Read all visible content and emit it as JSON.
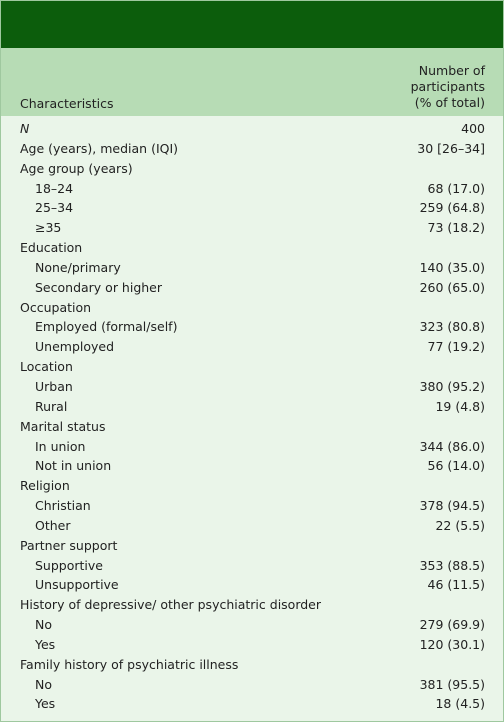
{
  "table": {
    "header": [
      "Characteristics",
      "Number of participants (% of total)"
    ],
    "rows": [
      {
        "label": "N",
        "value": "400"
      },
      {
        "label": "Age (years), median (IQI)",
        "value": "30 [26–34]"
      },
      {
        "label": "Age group (years)",
        "rows": [
          {
            "label": "18–24",
            "value": "68 (17.0)"
          },
          {
            "label": "25–34",
            "value": "259 (64.8)"
          },
          {
            "label": "≥35",
            "value": "73 (18.2)"
          }
        ]
      },
      {
        "label": "Education",
        "rows": [
          {
            "label": "None/primary",
            "value": "140 (35.0)"
          },
          {
            "label": "Secondary or higher",
            "value": "260 (65.0)"
          }
        ]
      },
      {
        "label": "Occupation",
        "rows": [
          {
            "label": "Employed (formal/self)",
            "value": "323 (80.8)"
          },
          {
            "label": "Unemployed",
            "value": "77 (19.2)"
          }
        ]
      },
      {
        "label": "Location",
        "rows": [
          {
            "label": "Urban",
            "value": "380 (95.2)"
          },
          {
            "label": "Rural",
            "value": "19 (4.8)"
          }
        ]
      },
      {
        "label": "Marital status",
        "rows": [
          {
            "label": "In union",
            "value": "344 (86.0)"
          },
          {
            "label": "Not in union",
            "value": "56 (14.0)"
          }
        ]
      },
      {
        "label": "Religion",
        "rows": [
          {
            "label": "Christian",
            "value": "378 (94.5)"
          },
          {
            "label": "Other",
            "value": "22 (5.5)"
          }
        ]
      },
      {
        "label": "Partner support",
        "rows": [
          {
            "label": "Supportive",
            "value": "353 (88.5)"
          },
          {
            "label": "Unsupportive",
            "value": "46 (11.5)"
          }
        ]
      },
      {
        "label": "History of depressive/ other psychiatric disorder",
        "rows": [
          {
            "label": "No",
            "value": "279 (69.9)"
          },
          {
            "label": "Yes",
            "value": "120 (30.1)"
          }
        ]
      },
      {
        "label": "Family history of psychiatric illness",
        "rows": [
          {
            "label": "No",
            "value": "381 (95.5)"
          },
          {
            "label": "Yes",
            "value": "18 (4.5)"
          }
        ]
      }
    ]
  }
}
